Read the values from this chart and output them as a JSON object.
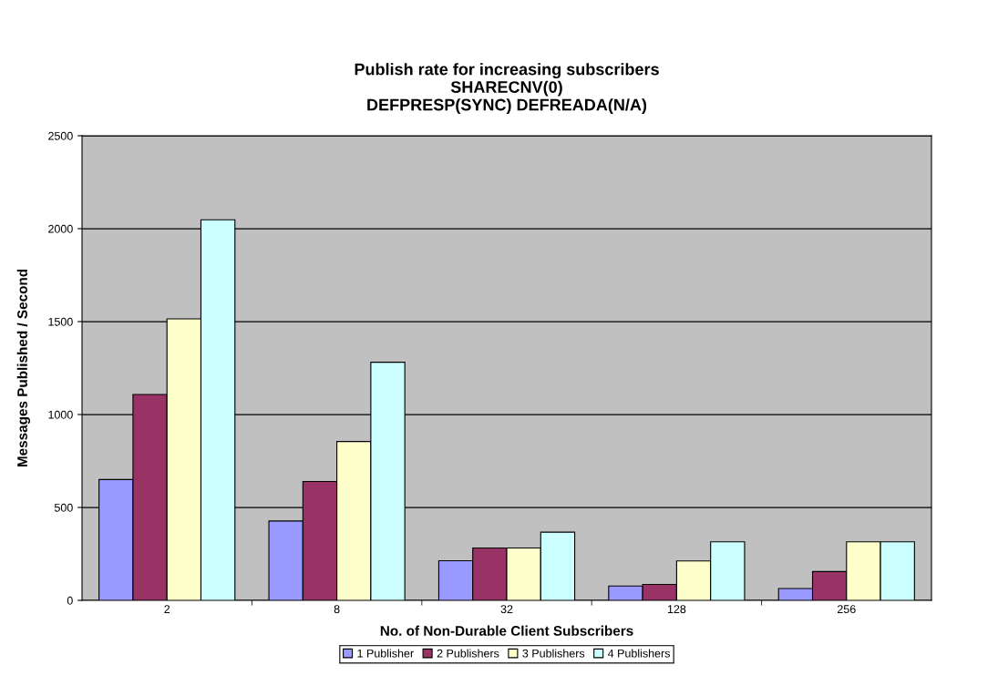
{
  "chart_data": {
    "type": "bar",
    "title": "Publish rate for increasing subscribers\nSHARECNV(0)\nDEFPRESP(SYNC) DEFREADA(N/A)",
    "xlabel": "No. of Non-Durable Client Subscribers",
    "ylabel": "Messages Published / Second",
    "categories": [
      "2",
      "8",
      "32",
      "128",
      "256"
    ],
    "series": [
      {
        "name": "1 Publisher",
        "color": "#9999ff",
        "values": [
          650,
          427,
          213,
          77,
          64
        ]
      },
      {
        "name": "2 Publishers",
        "color": "#993366",
        "values": [
          1108,
          640,
          282,
          86,
          155
        ]
      },
      {
        "name": "3 Publishers",
        "color": "#ffffcc",
        "values": [
          1515,
          855,
          282,
          212,
          315
        ]
      },
      {
        "name": "4 Publishers",
        "color": "#ccffff",
        "values": [
          2048,
          1281,
          367,
          315,
          315
        ]
      }
    ],
    "ylim": [
      0,
      2500
    ],
    "yticks": [
      0,
      500,
      1000,
      1500,
      2000,
      2500
    ],
    "grid": "y",
    "legend": "bottom"
  }
}
